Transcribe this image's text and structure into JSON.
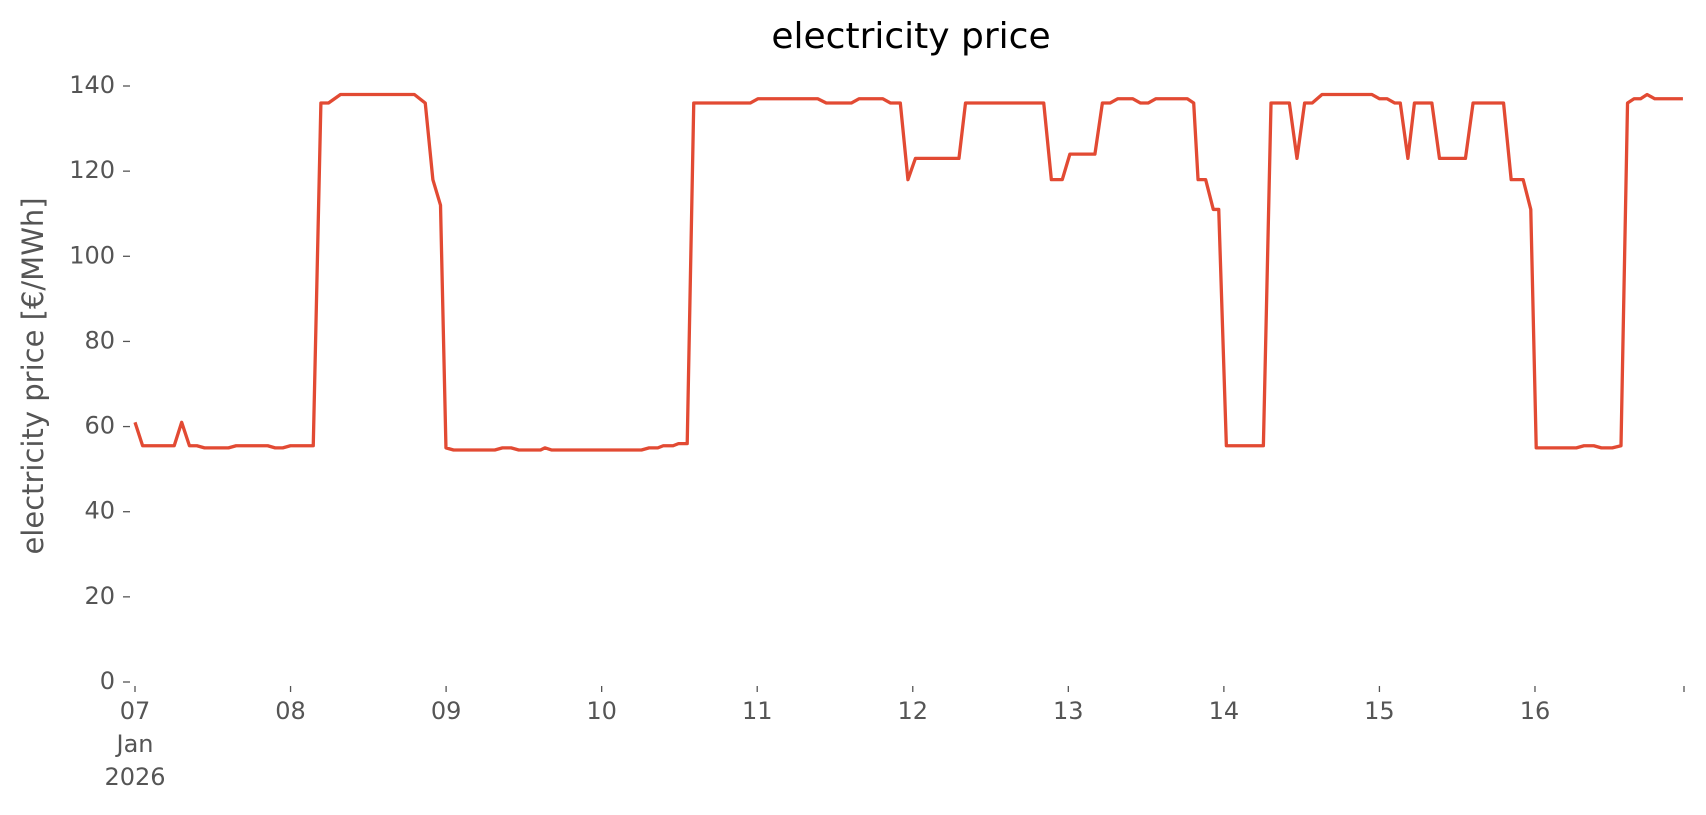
{
  "chart_data": {
    "type": "line",
    "title": "electricity price",
    "ylabel": "electricity price [€/MWh]",
    "color": "#e24a33",
    "x": [
      0,
      0.049,
      0.252,
      0.3,
      0.35,
      0.398,
      0.447,
      0.601,
      0.65,
      0.853,
      0.901,
      0.95,
      0.999,
      1.146,
      1.195,
      1.244,
      1.321,
      1.796,
      1.866,
      1.915,
      1.964,
      1.999,
      2.048,
      2.313,
      2.362,
      2.418,
      2.467,
      2.607,
      2.635,
      2.677,
      3.256,
      3.305,
      3.361,
      3.396,
      3.459,
      3.494,
      3.55,
      3.592,
      3.955,
      4.004,
      4.389,
      4.444,
      4.605,
      4.654,
      4.808,
      4.857,
      4.92,
      4.969,
      5.017,
      5.297,
      5.339,
      5.842,
      5.891,
      5.961,
      6.01,
      6.171,
      6.219,
      6.268,
      6.317,
      6.415,
      6.464,
      6.513,
      6.562,
      6.765,
      6.806,
      6.834,
      6.883,
      6.932,
      6.967,
      7.016,
      7.254,
      7.303,
      7.421,
      7.47,
      7.519,
      7.568,
      7.631,
      7.952,
      8.001,
      8.05,
      8.099,
      8.134,
      8.183,
      8.225,
      8.337,
      8.386,
      8.553,
      8.602,
      8.798,
      8.847,
      8.924,
      8.973,
      9.008,
      9.266,
      9.315,
      9.378,
      9.427,
      9.497,
      9.553,
      9.595,
      9.637,
      9.679,
      9.721,
      9.77,
      9.951
    ],
    "values": [
      61,
      55.5,
      55.5,
      61,
      55.5,
      55.5,
      55,
      55,
      55.5,
      55.5,
      55,
      55,
      55.5,
      55.5,
      136,
      136,
      138,
      138,
      136,
      118,
      112,
      55,
      54.5,
      54.5,
      55,
      55,
      54.5,
      54.5,
      55,
      54.5,
      54.5,
      55,
      55,
      55.5,
      55.5,
      56,
      56,
      136,
      136,
      137,
      137,
      136,
      136,
      137,
      137,
      136,
      136,
      118,
      123,
      123,
      136,
      136,
      118,
      118,
      124,
      124,
      136,
      136,
      137,
      137,
      136,
      136,
      137,
      137,
      136,
      118,
      118,
      111,
      111,
      55.5,
      55.5,
      136,
      136,
      123,
      136,
      136,
      138,
      138,
      137,
      137,
      136,
      136,
      123,
      136,
      136,
      123,
      123,
      136,
      136,
      118,
      118,
      111,
      55,
      55,
      55.5,
      55.5,
      55,
      55,
      55.5,
      136,
      137,
      137,
      138,
      137,
      137
    ],
    "xlim": [
      0,
      9.958
    ],
    "xticks": [
      {
        "value": 0,
        "label": "07"
      },
      {
        "value": 1,
        "label": "08"
      },
      {
        "value": 2,
        "label": "09"
      },
      {
        "value": 3,
        "label": "10"
      },
      {
        "value": 4,
        "label": "11"
      },
      {
        "value": 5,
        "label": "12"
      },
      {
        "value": 6,
        "label": "13"
      },
      {
        "value": 7,
        "label": "14"
      },
      {
        "value": 8,
        "label": "15"
      },
      {
        "value": 9,
        "label": "16"
      }
    ],
    "x_first_tick_sublabels": [
      "Jan",
      "2026"
    ],
    "ylim": [
      0,
      140
    ],
    "yticks": [
      0,
      20,
      40,
      60,
      80,
      100,
      120,
      140
    ],
    "grid": false
  }
}
